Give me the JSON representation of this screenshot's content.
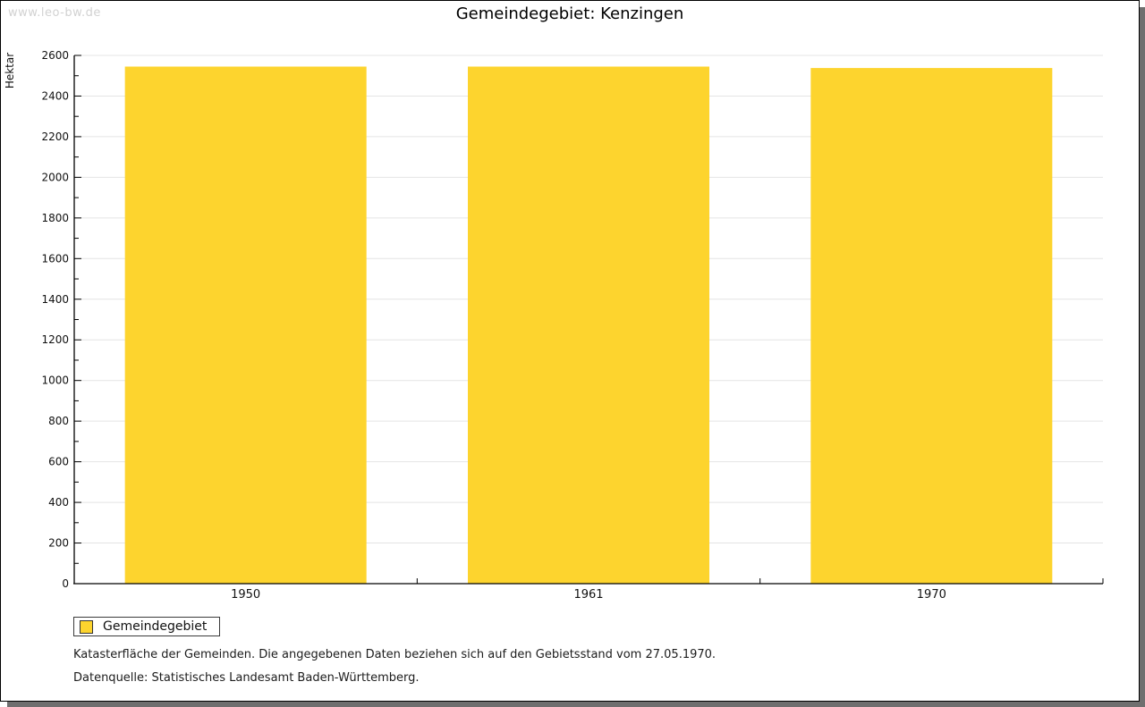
{
  "window": {
    "watermark": "www.leo-bw.de"
  },
  "title": "Gemeindegebiet: Kenzingen",
  "chart_data": {
    "type": "bar",
    "title": "Gemeindegebiet: Kenzingen",
    "categories": [
      "1950",
      "1961",
      "1970"
    ],
    "series": [
      {
        "name": "Gemeindegebiet",
        "values": [
          2545,
          2545,
          2538
        ]
      }
    ],
    "xlabel": "",
    "ylabel": "Hektar",
    "ylim": [
      0,
      2600
    ],
    "ytick_step": 200,
    "yminor_step": 100,
    "grid": "horizontal-major-only",
    "legend_position": "bottom-left",
    "bar_color": "#FDD42E",
    "grid_color": "#e4e4e4",
    "axis_color": "#000000",
    "text_color": "#111111"
  },
  "legend": {
    "items": [
      {
        "label": "Gemeindegebiet",
        "color": "#FDD42E"
      }
    ]
  },
  "footer": {
    "line1": "Katasterfläche der Gemeinden. Die angegebenen Daten beziehen sich auf den Gebietsstand vom 27.05.1970.",
    "line2": "Datenquelle: Statistisches Landesamt Baden-Württemberg."
  }
}
